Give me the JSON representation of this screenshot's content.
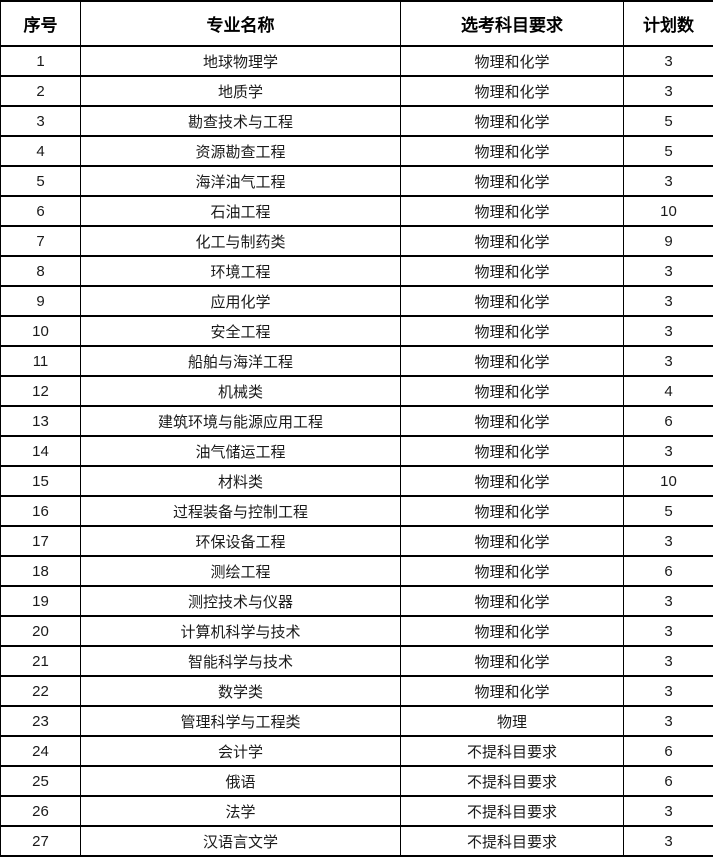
{
  "table": {
    "headers": [
      "序号",
      "专业名称",
      "选考科目要求",
      "计划数"
    ],
    "rows": [
      [
        "1",
        "地球物理学",
        "物理和化学",
        "3"
      ],
      [
        "2",
        "地质学",
        "物理和化学",
        "3"
      ],
      [
        "3",
        "勘查技术与工程",
        "物理和化学",
        "5"
      ],
      [
        "4",
        "资源勘查工程",
        "物理和化学",
        "5"
      ],
      [
        "5",
        "海洋油气工程",
        "物理和化学",
        "3"
      ],
      [
        "6",
        "石油工程",
        "物理和化学",
        "10"
      ],
      [
        "7",
        "化工与制药类",
        "物理和化学",
        "9"
      ],
      [
        "8",
        "环境工程",
        "物理和化学",
        "3"
      ],
      [
        "9",
        "应用化学",
        "物理和化学",
        "3"
      ],
      [
        "10",
        "安全工程",
        "物理和化学",
        "3"
      ],
      [
        "11",
        "船舶与海洋工程",
        "物理和化学",
        "3"
      ],
      [
        "12",
        "机械类",
        "物理和化学",
        "4"
      ],
      [
        "13",
        "建筑环境与能源应用工程",
        "物理和化学",
        "6"
      ],
      [
        "14",
        "油气储运工程",
        "物理和化学",
        "3"
      ],
      [
        "15",
        "材料类",
        "物理和化学",
        "10"
      ],
      [
        "16",
        "过程装备与控制工程",
        "物理和化学",
        "5"
      ],
      [
        "17",
        "环保设备工程",
        "物理和化学",
        "3"
      ],
      [
        "18",
        "测绘工程",
        "物理和化学",
        "6"
      ],
      [
        "19",
        "测控技术与仪器",
        "物理和化学",
        "3"
      ],
      [
        "20",
        "计算机科学与技术",
        "物理和化学",
        "3"
      ],
      [
        "21",
        "智能科学与技术",
        "物理和化学",
        "3"
      ],
      [
        "22",
        "数学类",
        "物理和化学",
        "3"
      ],
      [
        "23",
        "管理科学与工程类",
        "物理",
        "3"
      ],
      [
        "24",
        "会计学",
        "不提科目要求",
        "6"
      ],
      [
        "25",
        "俄语",
        "不提科目要求",
        "6"
      ],
      [
        "26",
        "法学",
        "不提科目要求",
        "3"
      ],
      [
        "27",
        "汉语言文学",
        "不提科目要求",
        "3"
      ]
    ],
    "colors": {
      "border": "#000000",
      "header_text": "#000000",
      "body_text": "#1a1a1a",
      "background": "#ffffff"
    }
  }
}
